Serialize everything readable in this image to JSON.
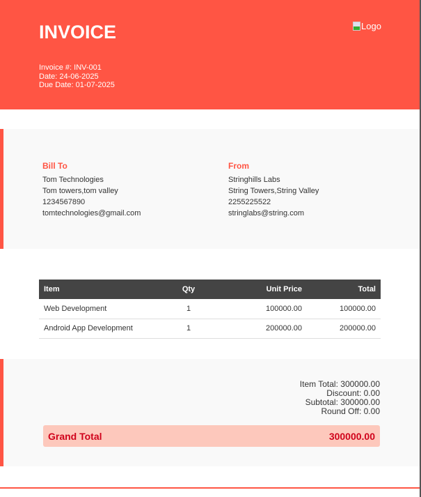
{
  "header": {
    "title": "INVOICE",
    "invoice_no": "Invoice #: INV-001",
    "date": "Date: 24-06-2025",
    "due_date": "Due Date: 01-07-2025",
    "logo_alt": "Logo"
  },
  "bill_to": {
    "heading": "Bill To",
    "name": "Tom Technologies",
    "address": "Tom towers,tom valley",
    "phone": "1234567890",
    "email": "tomtechnologies@gmail.com"
  },
  "from": {
    "heading": "From",
    "name": "Stringhills Labs",
    "address": "String Towers,String Valley",
    "phone": "2255225522",
    "email": "stringlabs@string.com"
  },
  "table": {
    "headers": [
      "Item",
      "Qty",
      "Unit Price",
      "Total"
    ],
    "rows": [
      [
        "Web Development",
        "1",
        "100000.00",
        "100000.00"
      ],
      [
        "Android App Development",
        "1",
        "200000.00",
        "200000.00"
      ]
    ]
  },
  "totals": {
    "item_total": "Item Total: 300000.00",
    "discount": "Discount: 0.00",
    "subtotal": "Subtotal: 300000.00",
    "round_off": "Round Off: 0.00",
    "grand_label": "Grand Total",
    "grand_value": "300000.00"
  },
  "colors": {
    "accent": "#ff5544",
    "grand_bg": "#fdc8bc",
    "grand_text": "#d0021b",
    "table_header": "#444444"
  }
}
